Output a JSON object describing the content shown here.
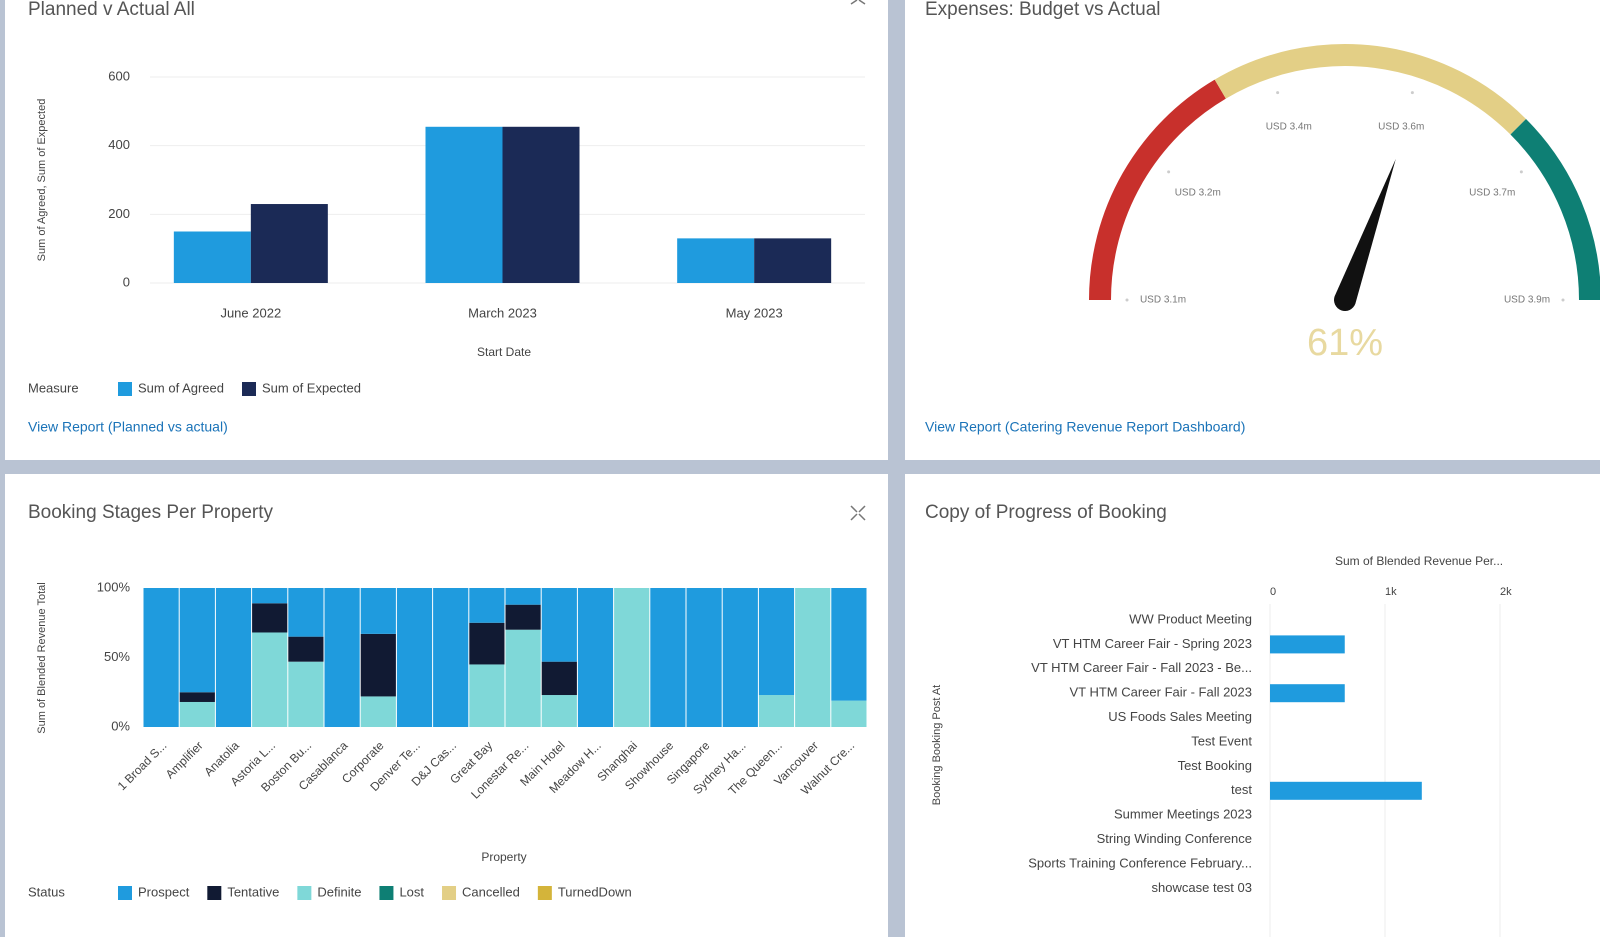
{
  "chart_data": [
    {
      "type": "bar",
      "title": "Planned v Actual All",
      "ylabel": "Sum of Agreed, Sum of Expected",
      "xlabel": "Start Date",
      "categories": [
        "June 2022",
        "March 2023",
        "May 2023"
      ],
      "series": [
        {
          "name": "Sum of Agreed",
          "color": "#1f9bde",
          "values": [
            150,
            455,
            130
          ]
        },
        {
          "name": "Sum of Expected",
          "color": "#1b2a56",
          "values": [
            230,
            455,
            130
          ]
        }
      ],
      "ylim": [
        0,
        600
      ],
      "yticks": [
        0,
        200,
        400,
        600
      ],
      "grid": true,
      "legend_title": "Measure",
      "link": "View Report (Planned vs actual)"
    },
    {
      "type": "gauge",
      "title": "Expenses: Budget vs Actual",
      "value": 61,
      "value_label": "61%",
      "range": [
        0,
        100
      ],
      "bands": [
        {
          "from": 0,
          "to": 33,
          "color": "#c8302c"
        },
        {
          "from": 33,
          "to": 75,
          "color": "#e3cf86"
        },
        {
          "from": 75,
          "to": 100,
          "color": "#0e7f74"
        }
      ],
      "ticks": [
        {
          "value": 0,
          "label": "USD 3.1m"
        },
        {
          "value": 20,
          "label": "USD 3.2m"
        },
        {
          "value": 40,
          "label": "USD 3.4m"
        },
        {
          "value": 60,
          "label": "USD 3.6m"
        },
        {
          "value": 80,
          "label": "USD 3.7m"
        },
        {
          "value": 100,
          "label": "USD 3.9m"
        }
      ],
      "link": "View Report (Catering Revenue Report Dashboard)"
    },
    {
      "type": "stacked_bar",
      "title": "Booking Stages Per Property",
      "ylabel": "Sum of Blended Revenue Total",
      "xlabel": "Property",
      "categories": [
        "1 Broad S...",
        "Amplifier",
        "Anatolia",
        "Astoria L...",
        "Boston Bu...",
        "Casablanca",
        "Corporate",
        "Denver Te...",
        "D&J Cas...",
        "Great Bay",
        "Lonestar Re...",
        "Main Hotel",
        "Meadow H...",
        "Shanghai",
        "Showhouse",
        "Singapore",
        "Sydney Ha...",
        "The Queen...",
        "Vancouver",
        "Walnut Cre..."
      ],
      "series": [
        {
          "name": "Prospect",
          "color": "#1f9bde",
          "values": [
            100,
            75,
            100,
            11,
            35,
            100,
            33,
            100,
            100,
            25,
            12,
            53,
            100,
            0,
            100,
            100,
            100,
            77,
            0,
            81
          ]
        },
        {
          "name": "Tentative",
          "color": "#111a33",
          "values": [
            0,
            7,
            0,
            21,
            18,
            0,
            45,
            0,
            0,
            30,
            18,
            24,
            0,
            0,
            0,
            0,
            0,
            0,
            0,
            0
          ]
        },
        {
          "name": "Definite",
          "color": "#7fd8d8",
          "values": [
            0,
            18,
            0,
            68,
            47,
            0,
            22,
            0,
            0,
            45,
            70,
            23,
            0,
            100,
            0,
            0,
            0,
            23,
            100,
            19
          ]
        },
        {
          "name": "Lost",
          "color": "#0e7f74",
          "values": [
            0,
            0,
            0,
            0,
            0,
            0,
            0,
            0,
            0,
            0,
            0,
            0,
            0,
            0,
            0,
            0,
            0,
            0,
            0,
            0
          ]
        },
        {
          "name": "Cancelled",
          "color": "#e3cf86",
          "values": [
            0,
            0,
            0,
            0,
            0,
            0,
            0,
            0,
            0,
            0,
            0,
            0,
            0,
            0,
            0,
            0,
            0,
            0,
            0,
            0
          ]
        },
        {
          "name": "TurnedDown",
          "color": "#d4b43a",
          "values": [
            0,
            0,
            0,
            0,
            0,
            0,
            0,
            0,
            0,
            0,
            0,
            0,
            0,
            0,
            0,
            0,
            0,
            0,
            0,
            0
          ]
        }
      ],
      "ylim": [
        0,
        100
      ],
      "yticks": [
        {
          "value": 0,
          "label": "0%"
        },
        {
          "value": 50,
          "label": "50%"
        },
        {
          "value": 100,
          "label": "100%"
        }
      ],
      "legend_title": "Status"
    },
    {
      "type": "hbar",
      "title": "Copy of Progress of Booking",
      "xlabel": "Sum of Blended Revenue Per...",
      "ylabel": "Booking Booking Post At",
      "categories": [
        "WW Product Meeting",
        "VT HTM Career Fair - Spring 2023",
        "VT HTM Career Fair - Fall 2023 - Be...",
        "VT HTM Career Fair - Fall 2023",
        "US Foods Sales Meeting",
        "Test Event",
        "Test Booking",
        "test",
        "Summer Meetings 2023",
        "String Winding Conference",
        "Sports Training Conference February...",
        "showcase test 03"
      ],
      "values": [
        0,
        650,
        0,
        650,
        0,
        0,
        0,
        1320,
        0,
        0,
        0,
        0
      ],
      "color": "#1f9bde",
      "xlim": [
        0,
        2500
      ],
      "xticks": [
        0,
        {
          "value": 1000,
          "label": "1k"
        },
        {
          "value": 2000,
          "label": "2k"
        }
      ],
      "grid": true
    }
  ]
}
